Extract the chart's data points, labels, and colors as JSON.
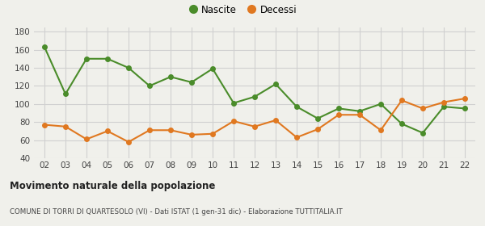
{
  "years": [
    "02",
    "03",
    "04",
    "05",
    "06",
    "07",
    "08",
    "09",
    "10",
    "11",
    "12",
    "13",
    "14",
    "15",
    "16",
    "17",
    "18",
    "19",
    "20",
    "21",
    "22"
  ],
  "nascite": [
    163,
    111,
    150,
    150,
    140,
    120,
    130,
    124,
    139,
    101,
    108,
    122,
    97,
    84,
    95,
    92,
    100,
    78,
    68,
    97,
    95
  ],
  "decessi": [
    77,
    75,
    61,
    70,
    58,
    71,
    71,
    66,
    67,
    81,
    75,
    82,
    63,
    72,
    88,
    88,
    71,
    104,
    95,
    102,
    106
  ],
  "nascite_color": "#4a8c2a",
  "decessi_color": "#e07820",
  "bg_color": "#f0f0eb",
  "grid_color": "#d0d0d0",
  "ylim": [
    40,
    185
  ],
  "yticks": [
    40,
    60,
    80,
    100,
    120,
    140,
    160,
    180
  ],
  "title": "Movimento naturale della popolazione",
  "subtitle": "COMUNE DI TORRI DI QUARTESOLO (VI) - Dati ISTAT (1 gen-31 dic) - Elaborazione TUTTITALIA.IT",
  "legend_nascite": "Nascite",
  "legend_decessi": "Decessi",
  "marker_size": 4,
  "line_width": 1.5
}
